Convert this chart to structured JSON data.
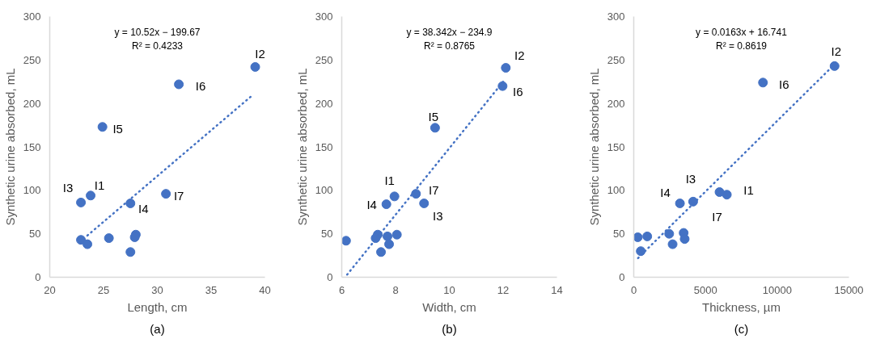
{
  "chart_data": [
    {
      "type": "scatter",
      "subtitle": "(a)",
      "xlabel": "Length, cm",
      "ylabel": "Synthetic urine absorbed, mL",
      "xlim": [
        20,
        40
      ],
      "xticks": [
        20,
        25,
        30,
        35,
        40
      ],
      "ylim": [
        0,
        300
      ],
      "yticks": [
        0,
        50,
        100,
        150,
        200,
        250,
        300
      ],
      "grid": false,
      "series": [
        {
          "marker": "circle",
          "color": "#4472c4",
          "x": [
            39.1,
            32.0,
            24.9,
            23.8,
            22.9,
            30.8,
            27.5,
            22.9,
            23.5,
            25.5,
            28.0,
            27.9,
            27.5
          ],
          "values": [
            242,
            222,
            173,
            94,
            86,
            96,
            85,
            43,
            38,
            45,
            49,
            46,
            29
          ]
        },
        {
          "type": "line",
          "line_style": "dotted",
          "color": "#4472c4",
          "x": [
            23.5,
            38.8
          ],
          "values": [
            48,
            209
          ]
        }
      ],
      "annotations": [
        "y = 10.52x − 199.67",
        "R² = 0.4233",
        {
          "text": "I2",
          "x": 39.1,
          "y": 242
        },
        {
          "text": "I6",
          "x": 32.0,
          "y": 222
        },
        {
          "text": "I5",
          "x": 24.9,
          "y": 173
        },
        {
          "text": "I1",
          "x": 23.8,
          "y": 94
        },
        {
          "text": "I3",
          "x": 22.9,
          "y": 86
        },
        {
          "text": "I7",
          "x": 30.8,
          "y": 96
        },
        {
          "text": "I4",
          "x": 27.5,
          "y": 85
        }
      ]
    },
    {
      "type": "scatter",
      "subtitle": "(b)",
      "xlabel": "Width, cm",
      "ylabel": "Synthetic urine absorbed, mL",
      "xlim": [
        6,
        14
      ],
      "xticks": [
        6,
        8,
        10,
        12,
        14
      ],
      "ylim": [
        0,
        300
      ],
      "yticks": [
        0,
        50,
        100,
        150,
        200,
        250,
        300
      ],
      "grid": false,
      "series": [
        {
          "marker": "circle",
          "color": "#4472c4",
          "x": [
            12.1,
            11.98,
            9.47,
            7.96,
            7.66,
            8.76,
            9.06,
            6.16,
            7.34,
            7.26,
            7.7,
            8.05,
            7.76,
            7.46
          ],
          "values": [
            241,
            220,
            172,
            93,
            84,
            96,
            85,
            42,
            49,
            45,
            47,
            49,
            38,
            29
          ]
        },
        {
          "type": "line",
          "line_style": "dotted",
          "color": "#4472c4",
          "x": [
            6.2,
            12.0
          ],
          "values": [
            3,
            225
          ]
        }
      ],
      "annotations": [
        "y = 38.342x − 234.9",
        "R² = 0.8765",
        {
          "text": "I2",
          "x": 12.1,
          "y": 241
        },
        {
          "text": "I6",
          "x": 11.98,
          "y": 220
        },
        {
          "text": "I5",
          "x": 9.47,
          "y": 172
        },
        {
          "text": "I1",
          "x": 7.96,
          "y": 93
        },
        {
          "text": "I4",
          "x": 7.66,
          "y": 84
        },
        {
          "text": "I7",
          "x": 8.76,
          "y": 96
        },
        {
          "text": "I3",
          "x": 9.06,
          "y": 85
        }
      ]
    },
    {
      "type": "scatter",
      "subtitle": "(c)",
      "xlabel": "Thickness, µm",
      "ylabel": "Synthetic urine absorbed, mL",
      "xlim": [
        0,
        15000
      ],
      "xticks": [
        0,
        5000,
        10000,
        15000
      ],
      "ylim": [
        0,
        300
      ],
      "yticks": [
        0,
        50,
        100,
        150,
        200,
        250,
        300
      ],
      "grid": false,
      "series": [
        {
          "marker": "circle",
          "color": "#4472c4",
          "x": [
            14000,
            9010,
            6490,
            5980,
            4140,
            3220,
            280,
            940,
            490,
            2470,
            2710,
            3480,
            3550
          ],
          "values": [
            243,
            224,
            95,
            98,
            87,
            85,
            46,
            47,
            30,
            50,
            38,
            51,
            44
          ]
        },
        {
          "type": "line",
          "line_style": "dotted",
          "color": "#4472c4",
          "x": [
            300,
            14000
          ],
          "values": [
            22,
            245
          ]
        }
      ],
      "annotations": [
        "y = 0.0163x + 16.741",
        "R² = 0.8619",
        {
          "text": "I2",
          "x": 14000,
          "y": 243
        },
        {
          "text": "I6",
          "x": 9010,
          "y": 224
        },
        {
          "text": "I1",
          "x": 6490,
          "y": 95
        },
        {
          "text": "I7",
          "x": 5980,
          "y": 98
        },
        {
          "text": "I3",
          "x": 4140,
          "y": 87
        },
        {
          "text": "I4",
          "x": 3220,
          "y": 85
        }
      ]
    }
  ]
}
